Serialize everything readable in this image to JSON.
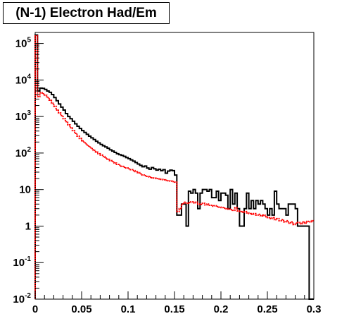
{
  "chart_data": {
    "type": "histogram",
    "title": "(N-1) Electron Had/Em",
    "xlim": [
      0,
      0.3
    ],
    "ylim": [
      0.01,
      200000
    ],
    "y_scale": "log",
    "bin_width": 0.0025,
    "x_tick_labels": [
      "0",
      "0.05",
      "0.1",
      "0.15",
      "0.2",
      "0.25",
      "0.3"
    ],
    "x_tick_values": [
      0,
      0.05,
      0.1,
      0.15,
      0.2,
      0.25,
      0.3
    ],
    "y_tick_labels": [
      {
        "base": "10",
        "exp": "-2",
        "value": 0.01
      },
      {
        "base": "10",
        "exp": "-1",
        "value": 0.1
      },
      {
        "base": "1",
        "exp": "",
        "value": 1
      },
      {
        "base": "10",
        "exp": "",
        "value": 10
      },
      {
        "base": "10",
        "exp": "2",
        "value": 100
      },
      {
        "base": "10",
        "exp": "3",
        "value": 1000
      },
      {
        "base": "10",
        "exp": "4",
        "value": 10000
      },
      {
        "base": "10",
        "exp": "5",
        "value": 100000
      }
    ],
    "series": [
      {
        "color": "#000000",
        "style": "solid",
        "values": [
          170000,
          5000,
          6000,
          5900,
          5500,
          5000,
          4600,
          4000,
          3300,
          2700,
          2200,
          1800,
          1500,
          1200,
          1000,
          870,
          740,
          630,
          540,
          470,
          410,
          365,
          325,
          290,
          260,
          235,
          210,
          190,
          172,
          158,
          147,
          135,
          122,
          113,
          104,
          96,
          90,
          86,
          81,
          75,
          70,
          65,
          60,
          55,
          50,
          46,
          42,
          44,
          39,
          36,
          40,
          37,
          34,
          36,
          33,
          35,
          28,
          32,
          34,
          33,
          25,
          2,
          2,
          4,
          4,
          1,
          9,
          8,
          10,
          8,
          3,
          8,
          10,
          10,
          9,
          10,
          6,
          6,
          9,
          5,
          8,
          8,
          7,
          3,
          10,
          4,
          8,
          3,
          1,
          1,
          3,
          8,
          3,
          5,
          3,
          5,
          4,
          5,
          4,
          3,
          2,
          3,
          2,
          9,
          4,
          3,
          3,
          3,
          2,
          4,
          4,
          4,
          3,
          1,
          1,
          1,
          1,
          1,
          0.01,
          0.01
        ],
        "highlight_empty_bins": []
      },
      {
        "color": "#ff0000",
        "style": "dashed",
        "values": [
          160000,
          3500,
          4500,
          4200,
          3800,
          3300,
          2800,
          2300,
          1900,
          1500,
          1250,
          1050,
          870,
          720,
          590,
          490,
          410,
          345,
          290,
          250,
          215,
          190,
          165,
          148,
          132,
          118,
          106,
          96,
          88,
          80,
          73,
          67,
          62,
          58,
          53,
          49,
          46,
          43,
          41,
          39,
          37,
          35,
          33,
          31,
          29,
          27,
          25,
          24,
          23,
          22,
          21,
          20.5,
          20,
          19.5,
          19,
          18.5,
          18,
          17.5,
          17,
          16.5,
          16,
          2.5,
          3,
          4,
          4.5,
          4.2,
          4.4,
          4.6,
          4.3,
          4.5,
          4,
          3.9,
          4.2,
          3.8,
          4,
          3.7,
          3.5,
          3.6,
          3.4,
          3.3,
          3.2,
          3.1,
          3,
          2.9,
          2.8,
          2.7,
          3.2,
          2.6,
          2.5,
          2.4,
          2.5,
          2.3,
          2.2,
          2.1,
          2.2,
          2,
          2.1,
          1.9,
          2,
          1.8,
          1.7,
          1.6,
          1.7,
          1.5,
          1.6,
          1.4,
          1.5,
          1.3,
          1.4,
          1.2,
          1.3,
          1.1,
          1.2,
          1.25,
          1.15,
          1.3,
          1.2,
          1.35,
          1.3,
          1.4
        ]
      }
    ]
  }
}
